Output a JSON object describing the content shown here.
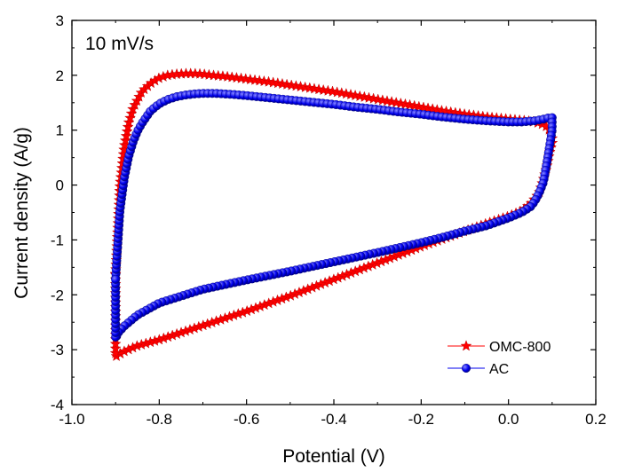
{
  "chart_data": {
    "type": "line",
    "annotation": "10 mV/s",
    "xlabel": "Potential (V)",
    "ylabel": "Current density (A/g)",
    "xlim": [
      -1.0,
      0.2
    ],
    "ylim": [
      -4,
      3
    ],
    "xticks": [
      -1.0,
      -0.8,
      -0.6,
      -0.4,
      -0.2,
      0.0,
      0.2
    ],
    "xtick_labels": [
      "-1.0",
      "-0.8",
      "-0.6",
      "-0.4",
      "-0.2",
      "0.0",
      "0.2"
    ],
    "yticks": [
      -4,
      -3,
      -2,
      -1,
      0,
      1,
      2,
      3
    ],
    "ytick_labels": [
      "-4",
      "-3",
      "-2",
      "-1",
      "0",
      "1",
      "2",
      "3"
    ],
    "grid": false,
    "legend_position": "bottom-right",
    "series": [
      {
        "name": "OMC-800",
        "color": "#ff0000",
        "marker": "star",
        "x": [
          -0.9,
          -0.89,
          -0.88,
          -0.87,
          -0.86,
          -0.84,
          -0.82,
          -0.8,
          -0.78,
          -0.76,
          -0.74,
          -0.72,
          -0.7,
          -0.68,
          -0.65,
          -0.6,
          -0.55,
          -0.5,
          -0.45,
          -0.4,
          -0.35,
          -0.3,
          -0.25,
          -0.2,
          -0.15,
          -0.1,
          -0.05,
          0.0,
          0.03,
          0.06,
          0.08,
          0.09,
          0.095,
          0.1,
          0.1,
          0.095,
          0.09,
          0.08,
          0.07,
          0.05,
          0.03,
          0.0,
          -0.05,
          -0.1,
          -0.15,
          -0.2,
          -0.3,
          -0.4,
          -0.5,
          -0.6,
          -0.7,
          -0.8,
          -0.85,
          -0.88,
          -0.895,
          -0.9,
          -0.9
        ],
        "y": [
          -1.62,
          -0.02,
          0.7,
          1.13,
          1.4,
          1.7,
          1.85,
          1.95,
          2.0,
          2.02,
          2.03,
          2.03,
          2.02,
          2.0,
          1.98,
          1.93,
          1.88,
          1.82,
          1.76,
          1.7,
          1.63,
          1.56,
          1.49,
          1.42,
          1.35,
          1.29,
          1.24,
          1.2,
          1.18,
          1.15,
          1.1,
          1.05,
          0.98,
          0.88,
          0.75,
          0.62,
          0.4,
          0.1,
          -0.15,
          -0.35,
          -0.47,
          -0.57,
          -0.7,
          -0.84,
          -0.98,
          -1.12,
          -1.42,
          -1.72,
          -2.02,
          -2.3,
          -2.56,
          -2.82,
          -2.93,
          -3.03,
          -3.1,
          -3.13,
          -1.62
        ]
      },
      {
        "name": "AC",
        "color": "#0000ee",
        "marker": "circle",
        "x": [
          -0.9,
          -0.89,
          -0.88,
          -0.87,
          -0.86,
          -0.85,
          -0.84,
          -0.82,
          -0.8,
          -0.78,
          -0.76,
          -0.74,
          -0.72,
          -0.7,
          -0.67,
          -0.63,
          -0.6,
          -0.55,
          -0.5,
          -0.45,
          -0.4,
          -0.35,
          -0.3,
          -0.25,
          -0.2,
          -0.15,
          -0.1,
          -0.05,
          0.0,
          0.03,
          0.06,
          0.08,
          0.09,
          0.1,
          0.1,
          0.095,
          0.09,
          0.085,
          0.08,
          0.07,
          0.06,
          0.05,
          0.03,
          0.0,
          -0.05,
          -0.1,
          -0.15,
          -0.2,
          -0.3,
          -0.4,
          -0.5,
          -0.6,
          -0.7,
          -0.8,
          -0.85,
          -0.88,
          -0.895,
          -0.9,
          -0.9
        ],
        "y": [
          -1.7,
          -0.47,
          0.13,
          0.52,
          0.78,
          0.98,
          1.12,
          1.35,
          1.48,
          1.56,
          1.61,
          1.64,
          1.66,
          1.67,
          1.67,
          1.65,
          1.63,
          1.59,
          1.55,
          1.51,
          1.47,
          1.42,
          1.38,
          1.33,
          1.29,
          1.24,
          1.2,
          1.17,
          1.15,
          1.15,
          1.17,
          1.2,
          1.22,
          1.23,
          1.0,
          0.75,
          0.5,
          0.27,
          0.05,
          -0.15,
          -0.3,
          -0.4,
          -0.5,
          -0.6,
          -0.74,
          -0.84,
          -0.95,
          -1.05,
          -1.23,
          -1.4,
          -1.57,
          -1.73,
          -1.9,
          -2.15,
          -2.37,
          -2.57,
          -2.7,
          -2.8,
          -1.7
        ]
      }
    ]
  }
}
